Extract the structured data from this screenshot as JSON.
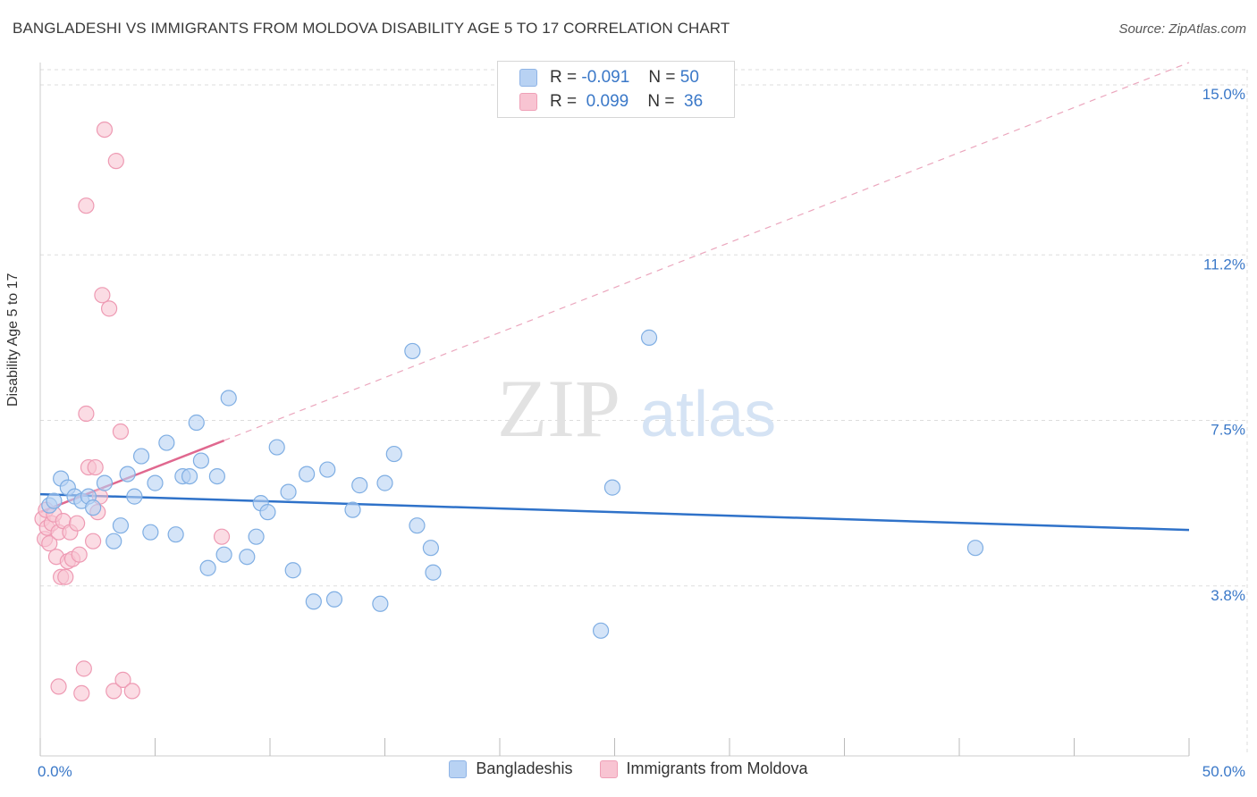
{
  "header": {
    "title": "BANGLADESHI VS IMMIGRANTS FROM MOLDOVA DISABILITY AGE 5 TO 17 CORRELATION CHART",
    "source": "Source: ZipAtlas.com"
  },
  "stats_legend": {
    "rows": [
      {
        "r_label": "R =",
        "r_value": "-0.091",
        "n_label": "N =",
        "n_value": "50"
      },
      {
        "r_label": "R =",
        "r_value": "0.099",
        "n_label": "N =",
        "n_value": "36"
      }
    ]
  },
  "watermark": {
    "zip": "ZIP",
    "atlas": "atlas"
  },
  "colors": {
    "blue_fill": "#b8d2f3",
    "blue_stroke": "#7faee3",
    "blue_line": "#2f72c9",
    "pink_fill": "#f8c4d2",
    "pink_stroke": "#ee9ab3",
    "pink_line": "#e0688f",
    "axis_text": "#3a78c8",
    "grid": "#dddddd"
  },
  "chart_data": {
    "type": "scatter",
    "title": "BANGLADESHI VS IMMIGRANTS FROM MOLDOVA DISABILITY AGE 5 TO 17 CORRELATION CHART",
    "xlabel": "",
    "ylabel": "Disability Age 5 to 17",
    "xlim": [
      0,
      50
    ],
    "ylim": [
      0,
      15.5
    ],
    "x_tick_labels": [
      "0.0%",
      "50.0%"
    ],
    "y_ticks": [
      3.8,
      7.5,
      11.2,
      15.0
    ],
    "y_tick_labels": [
      "3.8%",
      "7.5%",
      "11.2%",
      "15.0%"
    ],
    "legend": [
      "Bangladeshis",
      "Immigrants from Moldova"
    ],
    "series": [
      {
        "name": "Bangladeshis",
        "r": -0.091,
        "n": 50,
        "trend": {
          "x0": 0,
          "y0": 5.85,
          "x1": 50,
          "y1": 5.05
        },
        "points": [
          [
            0.4,
            5.6
          ],
          [
            0.6,
            5.7
          ],
          [
            0.9,
            6.2
          ],
          [
            1.2,
            6.0
          ],
          [
            1.5,
            5.8
          ],
          [
            1.8,
            5.7
          ],
          [
            2.1,
            5.8
          ],
          [
            2.3,
            5.55
          ],
          [
            2.8,
            6.1
          ],
          [
            3.2,
            4.8
          ],
          [
            3.5,
            5.15
          ],
          [
            3.8,
            6.3
          ],
          [
            4.1,
            5.8
          ],
          [
            4.4,
            6.7
          ],
          [
            4.8,
            5.0
          ],
          [
            5.0,
            6.1
          ],
          [
            5.5,
            7.0
          ],
          [
            5.9,
            4.95
          ],
          [
            6.2,
            6.25
          ],
          [
            6.5,
            6.25
          ],
          [
            6.8,
            7.45
          ],
          [
            7.0,
            6.6
          ],
          [
            7.3,
            4.2
          ],
          [
            7.7,
            6.25
          ],
          [
            8.0,
            4.5
          ],
          [
            8.2,
            8.0
          ],
          [
            9.0,
            4.45
          ],
          [
            9.4,
            4.9
          ],
          [
            9.6,
            5.65
          ],
          [
            9.9,
            5.45
          ],
          [
            10.3,
            6.9
          ],
          [
            10.8,
            5.9
          ],
          [
            11.0,
            4.15
          ],
          [
            11.6,
            6.3
          ],
          [
            11.9,
            3.45
          ],
          [
            12.5,
            6.4
          ],
          [
            12.8,
            3.5
          ],
          [
            13.6,
            5.5
          ],
          [
            13.9,
            6.05
          ],
          [
            14.8,
            3.4
          ],
          [
            15.0,
            6.1
          ],
          [
            15.4,
            6.75
          ],
          [
            16.2,
            9.05
          ],
          [
            16.4,
            5.15
          ],
          [
            17.0,
            4.65
          ],
          [
            17.1,
            4.1
          ],
          [
            24.4,
            2.8
          ],
          [
            24.9,
            6.0
          ],
          [
            26.5,
            9.35
          ],
          [
            40.7,
            4.65
          ]
        ]
      },
      {
        "name": "Immigrants from Moldova",
        "r": 0.099,
        "n": 36,
        "trend": {
          "x0": 0,
          "y0": 5.45,
          "x1": 8,
          "y1": 7.05
        },
        "trend_extension": {
          "x0": 8,
          "y0": 7.05,
          "x1": 50,
          "y1": 15.5
        },
        "points": [
          [
            0.1,
            5.3
          ],
          [
            0.2,
            4.85
          ],
          [
            0.25,
            5.5
          ],
          [
            0.3,
            5.1
          ],
          [
            0.4,
            4.75
          ],
          [
            0.5,
            5.2
          ],
          [
            0.6,
            5.4
          ],
          [
            0.7,
            4.45
          ],
          [
            0.8,
            5.0
          ],
          [
            0.9,
            4.0
          ],
          [
            1.0,
            5.25
          ],
          [
            1.1,
            4.0
          ],
          [
            1.2,
            4.35
          ],
          [
            1.3,
            5.0
          ],
          [
            1.4,
            4.4
          ],
          [
            1.6,
            5.2
          ],
          [
            1.7,
            4.5
          ],
          [
            1.8,
            1.4
          ],
          [
            1.9,
            1.95
          ],
          [
            2.0,
            7.65
          ],
          [
            2.0,
            12.3
          ],
          [
            2.1,
            6.45
          ],
          [
            2.3,
            4.8
          ],
          [
            2.4,
            6.45
          ],
          [
            2.5,
            5.45
          ],
          [
            2.6,
            5.8
          ],
          [
            2.7,
            10.3
          ],
          [
            2.8,
            14.0
          ],
          [
            3.0,
            10.0
          ],
          [
            3.2,
            1.45
          ],
          [
            3.3,
            13.3
          ],
          [
            3.5,
            7.25
          ],
          [
            3.6,
            1.7
          ],
          [
            4.0,
            1.45
          ],
          [
            7.9,
            4.9
          ],
          [
            0.8,
            1.55
          ]
        ]
      }
    ]
  }
}
